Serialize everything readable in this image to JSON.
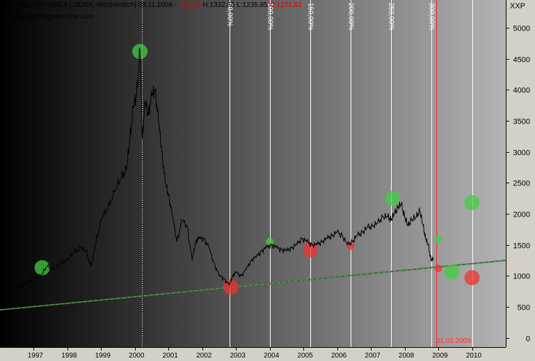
{
  "header": {
    "title": "NASDAQ 100 INDEX [.NDXX, Wöchentlich] 09.11.2008 -",
    "change": "-3,04%",
    "high": "H:1332,65",
    "low": "L:1235,85",
    "close": "C:1271,62"
  },
  "website": "www.tradesignalonline.com",
  "unit_label": "XXP",
  "marker_date": "01.02.2009",
  "colors": {
    "price_line": "#000000",
    "trend_line": "#22cc22",
    "cycle_line": "#ffffff",
    "marker_line": "#ff2020",
    "green_marker": "#44cc44",
    "red_marker": "#ee3333"
  },
  "chart_data": {
    "type": "line",
    "title": "NASDAQ 100 INDEX [.NDXX, Wöchentlich]",
    "xlabel": "",
    "ylabel": "",
    "xlim": [
      1996.0,
      2011.0
    ],
    "ylim": [
      -150,
      5450
    ],
    "x_ticks": [
      "1997",
      "1998",
      "1999",
      "2000",
      "2001",
      "2002",
      "2003",
      "2004",
      "2005",
      "2006",
      "2007",
      "2008",
      "2009",
      "2010"
    ],
    "x_tick_positions": [
      1997.0,
      1998.0,
      1999.0,
      2000.0,
      2001.0,
      2002.0,
      2003.0,
      2004.0,
      2005.0,
      2006.0,
      2007.0,
      2008.0,
      2009.0,
      2010.0
    ],
    "y_ticks": [
      0,
      500,
      1000,
      1500,
      2000,
      2500,
      3000,
      3500,
      4000,
      4500,
      5000
    ],
    "series": [
      {
        "points": [
          [
            1996.5,
            800
          ],
          [
            1996.7,
            870
          ],
          [
            1997.0,
            950
          ],
          [
            1997.2,
            1000
          ],
          [
            1997.4,
            1150
          ],
          [
            1997.6,
            1100
          ],
          [
            1997.8,
            1200
          ],
          [
            1998.0,
            1250
          ],
          [
            1998.2,
            1380
          ],
          [
            1998.4,
            1450
          ],
          [
            1998.55,
            1400
          ],
          [
            1998.7,
            1150
          ],
          [
            1998.85,
            1550
          ],
          [
            1999.0,
            1900
          ],
          [
            1999.2,
            2100
          ],
          [
            1999.4,
            2350
          ],
          [
            1999.6,
            2600
          ],
          [
            1999.75,
            2700
          ],
          [
            1999.85,
            3200
          ],
          [
            1999.95,
            3700
          ],
          [
            2000.05,
            3900
          ],
          [
            2000.15,
            4650
          ],
          [
            2000.22,
            3200
          ],
          [
            2000.3,
            3800
          ],
          [
            2000.4,
            3600
          ],
          [
            2000.5,
            3900
          ],
          [
            2000.6,
            4000
          ],
          [
            2000.7,
            3500
          ],
          [
            2000.8,
            3000
          ],
          [
            2000.9,
            2500
          ],
          [
            2001.0,
            2300
          ],
          [
            2001.1,
            2000
          ],
          [
            2001.25,
            1550
          ],
          [
            2001.4,
            1900
          ],
          [
            2001.55,
            1800
          ],
          [
            2001.7,
            1250
          ],
          [
            2001.8,
            1550
          ],
          [
            2001.9,
            1600
          ],
          [
            2002.05,
            1600
          ],
          [
            2002.2,
            1450
          ],
          [
            2002.35,
            1200
          ],
          [
            2002.5,
            1000
          ],
          [
            2002.65,
            950
          ],
          [
            2002.8,
            850
          ],
          [
            2002.9,
            1000
          ],
          [
            2003.0,
            1050
          ],
          [
            2003.15,
            1000
          ],
          [
            2003.3,
            1100
          ],
          [
            2003.45,
            1250
          ],
          [
            2003.6,
            1300
          ],
          [
            2003.75,
            1400
          ],
          [
            2003.9,
            1450
          ],
          [
            2004.05,
            1500
          ],
          [
            2004.2,
            1450
          ],
          [
            2004.35,
            1420
          ],
          [
            2004.5,
            1400
          ],
          [
            2004.65,
            1450
          ],
          [
            2004.8,
            1500
          ],
          [
            2004.95,
            1600
          ],
          [
            2005.1,
            1550
          ],
          [
            2005.25,
            1500
          ],
          [
            2005.4,
            1500
          ],
          [
            2005.55,
            1550
          ],
          [
            2005.7,
            1600
          ],
          [
            2005.85,
            1650
          ],
          [
            2006.0,
            1700
          ],
          [
            2006.15,
            1650
          ],
          [
            2006.3,
            1500
          ],
          [
            2006.45,
            1550
          ],
          [
            2006.6,
            1650
          ],
          [
            2006.75,
            1700
          ],
          [
            2006.9,
            1780
          ],
          [
            2007.05,
            1800
          ],
          [
            2007.2,
            1850
          ],
          [
            2007.35,
            1950
          ],
          [
            2007.5,
            1950
          ],
          [
            2007.6,
            1900
          ],
          [
            2007.7,
            2000
          ],
          [
            2007.8,
            2100
          ],
          [
            2007.9,
            2150
          ],
          [
            2008.0,
            1950
          ],
          [
            2008.1,
            1800
          ],
          [
            2008.2,
            1900
          ],
          [
            2008.35,
            1950
          ],
          [
            2008.45,
            2050
          ],
          [
            2008.55,
            1800
          ],
          [
            2008.62,
            1600
          ],
          [
            2008.7,
            1500
          ],
          [
            2008.78,
            1250
          ],
          [
            2008.86,
            1280
          ]
        ]
      }
    ],
    "trend_line": {
      "x": [
        1996.0,
        2011.0
      ],
      "y": [
        450,
        1250
      ]
    },
    "cycle_lines": {
      "x": [
        2002.8,
        2004.0,
        2005.2,
        2006.4,
        2007.6,
        2008.8,
        2010.0
      ],
      "labels": [
        "50,00%",
        "100,00%",
        "150,00%",
        "200,00%",
        "250,00%",
        "300,00%"
      ]
    },
    "peak_line_x": 2000.2,
    "markers": [
      {
        "x": 1997.25,
        "y": 1130,
        "color": "green",
        "size": "large"
      },
      {
        "x": 2000.15,
        "y": 4620,
        "color": "green",
        "size": "large"
      },
      {
        "x": 2002.85,
        "y": 820,
        "color": "red",
        "size": "large"
      },
      {
        "x": 2004.0,
        "y": 1550,
        "color": "green",
        "size": "small"
      },
      {
        "x": 2005.2,
        "y": 1420,
        "color": "red",
        "size": "large"
      },
      {
        "x": 2006.4,
        "y": 1480,
        "color": "red",
        "size": "small"
      },
      {
        "x": 2007.65,
        "y": 2250,
        "color": "green",
        "size": "large"
      },
      {
        "x": 2009.0,
        "y": 1590,
        "color": "green",
        "size": "small"
      },
      {
        "x": 2009.0,
        "y": 1120,
        "color": "red",
        "size": "small"
      },
      {
        "x": 2009.4,
        "y": 1060,
        "color": "green",
        "size": "large"
      },
      {
        "x": 2010.0,
        "y": 2180,
        "color": "green",
        "size": "large"
      },
      {
        "x": 2010.0,
        "y": 970,
        "color": "red",
        "size": "large"
      }
    ],
    "grid": false,
    "legend": "none"
  }
}
